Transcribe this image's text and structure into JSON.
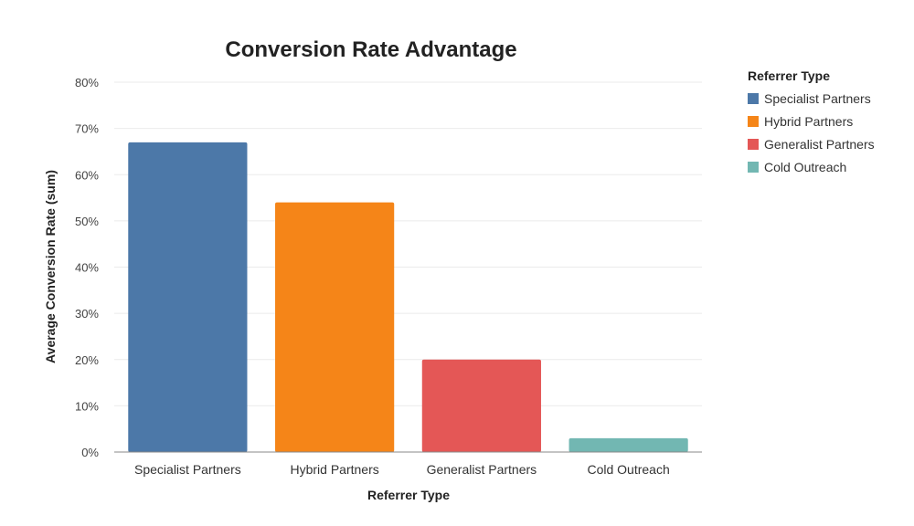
{
  "chart_data": {
    "type": "bar",
    "title": "Conversion Rate Advantage",
    "xlabel": "Referrer Type",
    "ylabel": "Average Conversion Rate (sum)",
    "categories": [
      "Specialist Partners",
      "Hybrid Partners",
      "Generalist Partners",
      "Cold Outreach"
    ],
    "values": [
      67,
      54,
      20,
      3
    ],
    "colors": [
      "#4C78A8",
      "#F58518",
      "#E45756",
      "#72B7B2"
    ],
    "ylim": [
      0,
      80
    ],
    "yticks": [
      0,
      10,
      20,
      30,
      40,
      50,
      60,
      70,
      80
    ],
    "ytick_format": "percent",
    "grid": true,
    "legend": {
      "title": "Referrer Type",
      "placement": "top-right",
      "entries": [
        "Specialist Partners",
        "Hybrid Partners",
        "Generalist Partners",
        "Cold Outreach"
      ]
    }
  }
}
